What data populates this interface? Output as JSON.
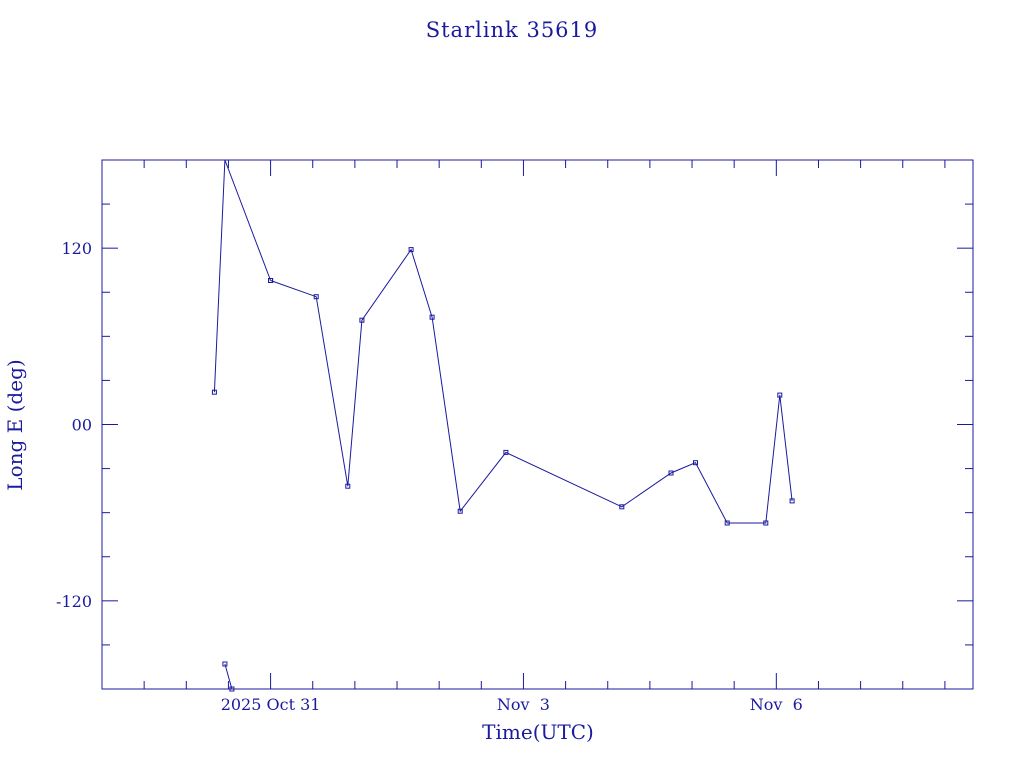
{
  "chart_data": {
    "type": "line",
    "title": "Starlink 35619",
    "xlabel": "Time(UTC)",
    "ylabel": "Long E (deg)",
    "xlim": [
      "2025-10-29T00:00",
      "2025-11-08T08:00"
    ],
    "ylim": [
      -180,
      180
    ],
    "x_tick_labels": [
      {
        "label": "2025 Oct 31",
        "at": "2025-10-31T00:00"
      },
      {
        "label": "Nov  3",
        "at": "2025-11-03T00:00"
      },
      {
        "label": "Nov  6",
        "at": "2025-11-06T00:00"
      }
    ],
    "y_tick_labels": [
      {
        "label": "120",
        "value": 120
      },
      {
        "label": "00",
        "value": 0
      },
      {
        "label": "-120",
        "value": -120
      }
    ],
    "grid": false,
    "line_color": "#1a1a9e",
    "series": [
      {
        "x": [
          "2025-10-30T08:00",
          "2025-10-30T11:00",
          "2025-10-31T00:00"
        ],
        "y": [
          22,
          185,
          98
        ],
        "wrap_after": [
          1
        ]
      },
      {
        "x": [
          "2025-10-30T11:00",
          "2025-10-30T13:00"
        ],
        "y": [
          -163,
          -180
        ]
      },
      {
        "x": [
          "2025-10-31T00:00",
          "2025-10-31T13:00",
          "2025-10-31T22:00",
          "2025-11-01T02:00",
          "2025-11-01T16:00",
          "2025-11-01T22:00",
          "2025-11-02T06:00",
          "2025-11-02T19:00",
          "2025-11-04T04:00",
          "2025-11-04T18:00",
          "2025-11-05T01:00",
          "2025-11-05T10:00",
          "2025-11-05T21:00",
          "2025-11-06T01:00",
          "2025-11-06T04:30"
        ],
        "y": [
          98,
          87,
          -42,
          71,
          119,
          73,
          -59,
          -19,
          -56,
          -33,
          -26,
          -67,
          -67,
          20,
          -52
        ]
      }
    ]
  }
}
